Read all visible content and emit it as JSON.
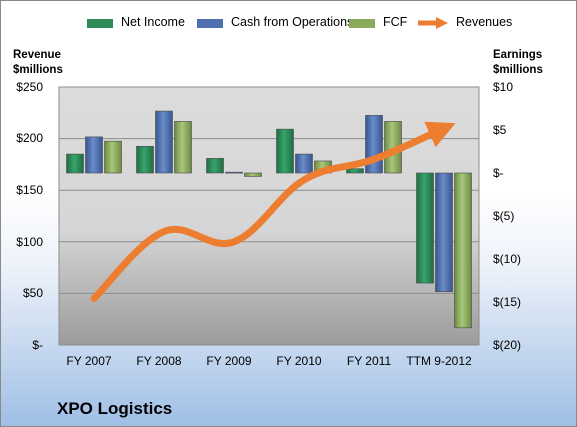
{
  "legend": [
    {
      "label": "Net Income",
      "color": "#2e8b57"
    },
    {
      "label": "Cash from Operations",
      "color": "#4f6fb0"
    },
    {
      "label": "FCF",
      "color": "#8aab5a"
    },
    {
      "label": "Revenues",
      "color": "#ed7d31"
    }
  ],
  "left_axis_title": [
    "Revenue",
    "$millions"
  ],
  "right_axis_title": [
    "Earnings",
    "$millions"
  ],
  "footer_title": "XPO Logistics",
  "chart_data": {
    "type": "bar",
    "categories": [
      "FY 2007",
      "FY 2008",
      "FY 2009",
      "FY 2010",
      "FY 2011",
      "TTM 9-2012"
    ],
    "left_axis": {
      "label": "Revenue $millions",
      "ylim": [
        0,
        250
      ],
      "ticks": [
        "$-",
        "$50",
        "$100",
        "$150",
        "$200",
        "$250"
      ],
      "tick_values": [
        0,
        50,
        100,
        150,
        200,
        250
      ]
    },
    "right_axis": {
      "label": "Earnings $millions",
      "ylim": [
        -20,
        10
      ],
      "ticks": [
        "$(20)",
        "$(15)",
        "$(10)",
        "$(5)",
        "$-",
        "$5",
        "$10"
      ],
      "tick_values": [
        -20,
        -15,
        -10,
        -5,
        0,
        5,
        10
      ]
    },
    "series": [
      {
        "name": "Net Income",
        "axis": "right",
        "type": "bar",
        "color": "#2e8b57",
        "values": [
          2.2,
          3.1,
          1.7,
          5.1,
          0.5,
          -12.8
        ]
      },
      {
        "name": "Cash from Operations",
        "axis": "right",
        "type": "bar",
        "color": "#4f6fb0",
        "values": [
          4.2,
          7.2,
          0.1,
          2.2,
          6.7,
          -13.8
        ]
      },
      {
        "name": "FCF",
        "axis": "right",
        "type": "bar",
        "color": "#8aab5a",
        "values": [
          3.7,
          6.0,
          -0.4,
          1.4,
          6.0,
          -18.0
        ]
      },
      {
        "name": "Revenues",
        "axis": "left",
        "type": "line",
        "color": "#ed7d31",
        "values": [
          45,
          110,
          100,
          160,
          180,
          210
        ]
      }
    ],
    "grid": true
  }
}
